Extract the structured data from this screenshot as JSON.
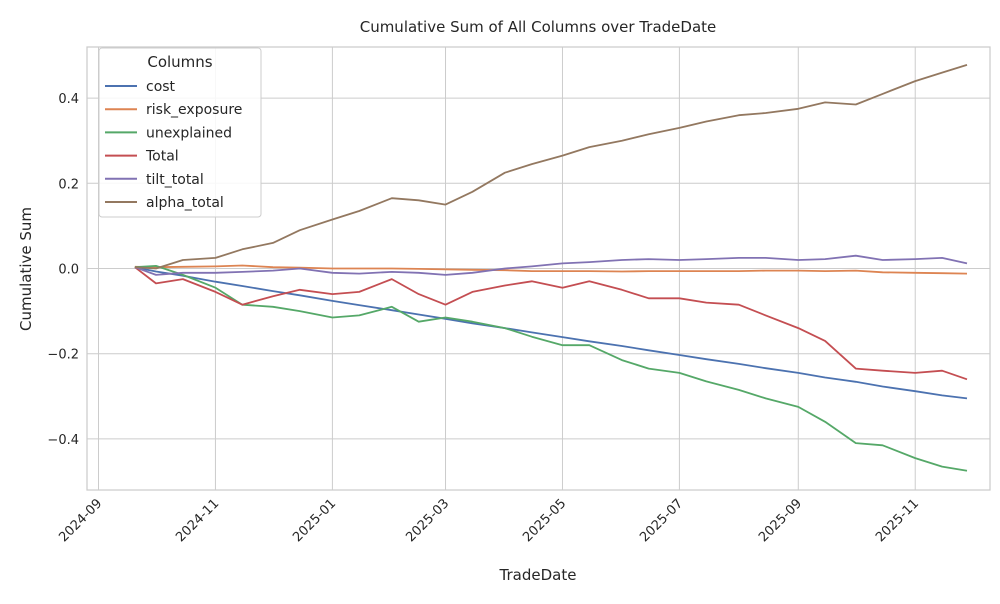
{
  "chart_data": {
    "type": "line",
    "title": "Cumulative Sum of All Columns over TradeDate",
    "xlabel": "TradeDate",
    "ylabel": "Cumulative Sum",
    "xlim": [
      "2024-08-26",
      "2025-12-10"
    ],
    "ylim": [
      -0.52,
      0.52
    ],
    "grid": true,
    "legend": {
      "title": "Columns",
      "position": "top-left"
    },
    "x_ticks": [
      "2024-09",
      "2024-11",
      "2025-01",
      "2025-03",
      "2025-05",
      "2025-07",
      "2025-09",
      "2025-11"
    ],
    "y_ticks": [
      -0.4,
      -0.2,
      0.0,
      0.2,
      0.4
    ],
    "y_tick_labels": [
      "−0.4",
      "−0.2",
      "0.0",
      "0.2",
      "0.4"
    ],
    "x": [
      "2024-09-20",
      "2024-10-01",
      "2024-10-15",
      "2024-11-01",
      "2024-11-15",
      "2024-12-01",
      "2024-12-15",
      "2025-01-01",
      "2025-01-15",
      "2025-02-01",
      "2025-02-15",
      "2025-03-01",
      "2025-03-15",
      "2025-04-01",
      "2025-04-15",
      "2025-05-01",
      "2025-05-15",
      "2025-06-01",
      "2025-06-15",
      "2025-07-01",
      "2025-07-15",
      "2025-08-01",
      "2025-08-15",
      "2025-09-01",
      "2025-09-15",
      "2025-10-01",
      "2025-10-15",
      "2025-11-01",
      "2025-11-15",
      "2025-11-28"
    ],
    "series": [
      {
        "name": "cost",
        "color": "#4c72b0",
        "values": [
          0.003,
          -0.007,
          -0.017,
          -0.031,
          -0.041,
          -0.053,
          -0.063,
          -0.076,
          -0.086,
          -0.098,
          -0.108,
          -0.118,
          -0.129,
          -0.14,
          -0.15,
          -0.161,
          -0.171,
          -0.182,
          -0.192,
          -0.203,
          -0.213,
          -0.224,
          -0.234,
          -0.245,
          -0.256,
          -0.266,
          -0.277,
          -0.288,
          -0.298,
          -0.305
        ]
      },
      {
        "name": "risk_exposure",
        "color": "#dd8452",
        "values": [
          0.004,
          0.003,
          0.004,
          0.005,
          0.007,
          0.003,
          0.002,
          0.0,
          0.0,
          0.0,
          -0.001,
          -0.002,
          -0.003,
          -0.004,
          -0.006,
          -0.006,
          -0.006,
          -0.007,
          -0.006,
          -0.006,
          -0.006,
          -0.006,
          -0.005,
          -0.005,
          -0.006,
          -0.005,
          -0.009,
          -0.01,
          -0.011,
          -0.012
        ]
      },
      {
        "name": "unexplained",
        "color": "#55a868",
        "values": [
          0.003,
          0.006,
          -0.015,
          -0.045,
          -0.085,
          -0.09,
          -0.1,
          -0.115,
          -0.11,
          -0.09,
          -0.125,
          -0.115,
          -0.125,
          -0.14,
          -0.16,
          -0.18,
          -0.18,
          -0.215,
          -0.235,
          -0.245,
          -0.265,
          -0.285,
          -0.305,
          -0.325,
          -0.36,
          -0.41,
          -0.415,
          -0.445,
          -0.465,
          -0.475
        ]
      },
      {
        "name": "Total",
        "color": "#c44e52",
        "values": [
          0.003,
          -0.035,
          -0.025,
          -0.055,
          -0.085,
          -0.065,
          -0.05,
          -0.06,
          -0.055,
          -0.025,
          -0.06,
          -0.085,
          -0.055,
          -0.04,
          -0.03,
          -0.045,
          -0.03,
          -0.05,
          -0.07,
          -0.07,
          -0.08,
          -0.085,
          -0.11,
          -0.14,
          -0.17,
          -0.235,
          -0.24,
          -0.245,
          -0.24,
          -0.26
        ]
      },
      {
        "name": "tilt_total",
        "color": "#8172b3",
        "values": [
          0.003,
          -0.015,
          -0.01,
          -0.01,
          -0.008,
          -0.005,
          0.0,
          -0.01,
          -0.012,
          -0.008,
          -0.01,
          -0.015,
          -0.01,
          0.0,
          0.005,
          0.012,
          0.015,
          0.02,
          0.022,
          0.02,
          0.022,
          0.025,
          0.025,
          0.02,
          0.022,
          0.03,
          0.02,
          0.022,
          0.025,
          0.012
        ]
      },
      {
        "name": "alpha_total",
        "color": "#937860",
        "values": [
          0.003,
          0.0,
          0.02,
          0.025,
          0.045,
          0.06,
          0.09,
          0.115,
          0.135,
          0.165,
          0.16,
          0.15,
          0.18,
          0.225,
          0.245,
          0.265,
          0.285,
          0.3,
          0.315,
          0.33,
          0.345,
          0.36,
          0.365,
          0.375,
          0.39,
          0.385,
          0.41,
          0.44,
          0.46,
          0.478
        ]
      }
    ]
  }
}
